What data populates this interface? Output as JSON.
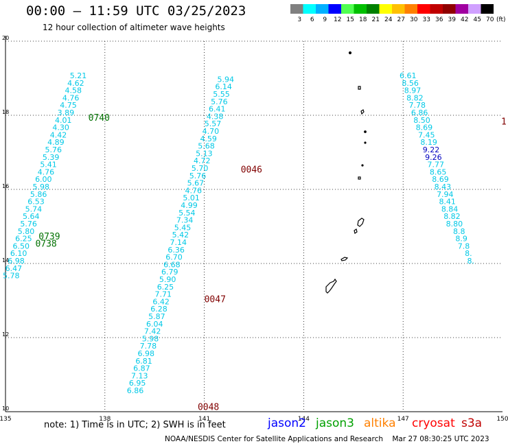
{
  "header": {
    "title": "00:00 — 11:59 UTC 03/25/2023",
    "subtitle": "12 hour collection of altimeter wave heights"
  },
  "colorbar": {
    "unit": "(ft)",
    "bins": [
      {
        "label": "3",
        "color": "#808080"
      },
      {
        "label": "6",
        "color": "#00ffff"
      },
      {
        "label": "9",
        "color": "#00b0ff"
      },
      {
        "label": "12",
        "color": "#0000ff"
      },
      {
        "label": "15",
        "color": "#50ff50"
      },
      {
        "label": "18",
        "color": "#00c000"
      },
      {
        "label": "21",
        "color": "#008000"
      },
      {
        "label": "24",
        "color": "#ffff00"
      },
      {
        "label": "27",
        "color": "#ffc000"
      },
      {
        "label": "30",
        "color": "#ff8000"
      },
      {
        "label": "33",
        "color": "#ff0000"
      },
      {
        "label": "36",
        "color": "#c00000"
      },
      {
        "label": "39",
        "color": "#900000"
      },
      {
        "label": "42",
        "color": "#a000a0"
      },
      {
        "label": "45",
        "color": "#d0a0ff"
      },
      {
        "label": "70",
        "color": "#000000"
      }
    ]
  },
  "axes": {
    "lon_ticks": [
      "135",
      "138",
      "141",
      "144",
      "147",
      "150"
    ],
    "lat_ticks": [
      "10",
      "12",
      "14",
      "16",
      "18",
      "20"
    ]
  },
  "tracks": [
    {
      "name": "track-a",
      "color": "#00c8e6",
      "lat_start": 19.0,
      "lat_step": -0.2,
      "lon_start": 137.45,
      "lon_step": -0.075,
      "values": [
        "5.21",
        "4.62",
        "4.58",
        "4.76",
        "4.75",
        "3.89",
        "4.01",
        "4.30",
        "4.42",
        "4.89",
        "5.76",
        "5.39",
        "5.41",
        "4.76",
        "6.00",
        "5.98",
        "5.86",
        "6.53",
        "5.74",
        "5.64",
        "5.76",
        "5.80",
        "6.25",
        "6.50",
        "6.10",
        "6.98",
        "6.47",
        "5.78"
      ]
    },
    {
      "name": "track-b",
      "color": "#00c8e6",
      "lat_start": 18.9,
      "lat_step": -0.2,
      "lon_start": 141.9,
      "lon_step": -0.065,
      "values": [
        "5.94",
        "6.14",
        "5.55",
        "5.76",
        "6.41",
        "4.38",
        "5.57",
        "4.70",
        "4.59",
        "5.68",
        "5.13",
        "4.72",
        "5.70",
        "5.76",
        "5.67",
        "4.76",
        "5.01",
        "4.99",
        "5.54",
        "7.34",
        "5.45",
        "5.42",
        "7.14",
        "6.36",
        "6.70",
        "6.68",
        "6.79",
        "5.90",
        "6.25",
        "7.71",
        "6.42",
        "6.28",
        "5.87",
        "6.04",
        "7.42",
        "5.98",
        "7.78",
        "6.98",
        "6.81",
        "6.87",
        "7.13",
        "6.95",
        "6.86"
      ]
    },
    {
      "name": "track-c",
      "color": "#00c8e6",
      "lat_start": 19.0,
      "lat_step": -0.2,
      "lon_start": 147.4,
      "lon_step": 0.07,
      "values": [
        "6.61",
        "8.56",
        "8.97",
        "8.82",
        "7.78",
        "6.86",
        "8.50",
        "8.69",
        "7.45",
        "8.19",
        "9.22",
        "9.26",
        "7.77",
        "8.65",
        "8.69",
        "8.43",
        "7.94",
        "8.41",
        "8.84",
        "8.82",
        "8.80",
        "8.8",
        "8.9",
        "7.8",
        "8.",
        "8."
      ]
    }
  ],
  "highlighted_values": [
    {
      "track": "track-c",
      "index": 10,
      "color": "#0000c0"
    },
    {
      "track": "track-c",
      "index": 11,
      "color": "#0000c0"
    }
  ],
  "time_labels": [
    {
      "text": "0740",
      "color": "#007000",
      "lon": 137.5,
      "lat": 17.85
    },
    {
      "text": "0739",
      "color": "#007000",
      "lon": 136.0,
      "lat": 14.65
    },
    {
      "text": "0738",
      "color": "#007000",
      "lon": 135.9,
      "lat": 14.45
    },
    {
      "text": "0046",
      "color": "#800000",
      "lon": 142.1,
      "lat": 16.45
    },
    {
      "text": "0047",
      "color": "#800000",
      "lon": 141.0,
      "lat": 12.95
    },
    {
      "text": "0048",
      "color": "#800000",
      "lon": 140.8,
      "lat": 10.05
    }
  ],
  "edge_label": {
    "text": "1",
    "color": "#800000",
    "lon": 150.0,
    "lat": 17.75
  },
  "footer": {
    "note": "note: 1) Time is in UTC; 2) SWH is in feet",
    "credit": "NOAA/NESDIS Center for Satellite Applications and Research    Mar 27 08:30:25 UTC 2023",
    "satellites": [
      {
        "name": "jason2",
        "color": "#0000ff"
      },
      {
        "name": "jason3",
        "color": "#00a000"
      },
      {
        "name": "altika",
        "color": "#ff8000"
      },
      {
        "name": "cryosat",
        "color": "#ff0000"
      },
      {
        "name": "s3a",
        "color": "#c00000"
      }
    ]
  }
}
